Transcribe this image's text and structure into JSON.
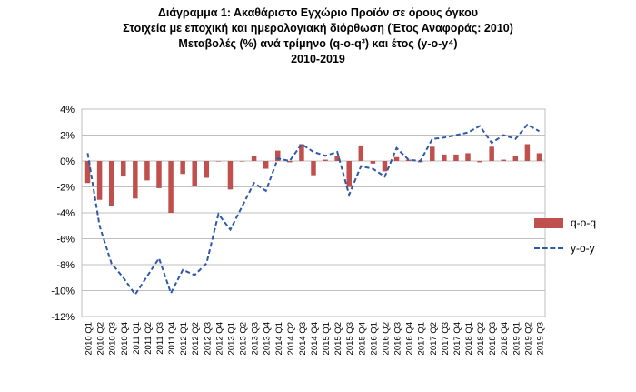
{
  "header": {
    "title": "Διάγραμμα 1: Ακαθάριστο Εγχώριο Προϊόν σε όρους όγκου",
    "subtitle1": "Στοιχεία με εποχική και ημερολογιακή διόρθωση (Έτος Αναφοράς: 2010)",
    "subtitle2": "Μεταβολές (%) ανά τρίμηνο (q-o-q³) και έτος (y-o-y⁴)",
    "subtitle3": "2010-2019"
  },
  "chart_data": {
    "type": "bar",
    "categories": [
      "2010 Q1",
      "2010 Q2",
      "2010 Q3",
      "2010 Q4",
      "2011 Q1",
      "2011 Q2",
      "2011 Q3",
      "2011 Q4",
      "2012 Q1",
      "2012 Q2",
      "2012 Q3",
      "2012 Q4",
      "2013 Q1",
      "2013 Q2",
      "2013 Q3",
      "2013 Q4",
      "2014 Q1",
      "2014 Q2",
      "2014 Q3",
      "2014 Q4",
      "2015 Q1",
      "2015 Q2",
      "2015 Q3",
      "2015 Q4",
      "2016 Q1",
      "2016 Q2",
      "2016 Q3",
      "2016 Q4",
      "2017 Q1",
      "2017 Q2",
      "2017 Q3",
      "2017 Q4",
      "2018 Q1",
      "2018 Q2",
      "2018 Q3",
      "2018 Q4",
      "2019 Q1",
      "2019 Q2",
      "2019 Q3"
    ],
    "series": [
      {
        "name": "q-o-q",
        "kind": "bar",
        "color": "#c0504d",
        "values": [
          -1.7,
          -3.0,
          -3.5,
          -1.2,
          -2.9,
          -1.5,
          -2.1,
          -4.0,
          -1.0,
          -1.9,
          -1.3,
          0.0,
          -2.2,
          0.0,
          0.4,
          -0.6,
          0.8,
          -0.1,
          1.3,
          -1.1,
          0.1,
          0.4,
          -2.0,
          1.2,
          -0.2,
          -0.8,
          0.3,
          0.1,
          -0.1,
          1.1,
          0.5,
          0.5,
          0.6,
          -0.1,
          1.1,
          0.1,
          0.4,
          1.3,
          0.6
        ]
      },
      {
        "name": "y-o-y",
        "kind": "line",
        "color": "#2e5aa8",
        "dashed": true,
        "values": [
          0.6,
          -5.0,
          -7.9,
          -9.0,
          -10.3,
          -8.9,
          -7.5,
          -10.2,
          -8.4,
          -8.8,
          -7.9,
          -4.1,
          -5.3,
          -3.5,
          -1.7,
          -2.3,
          0.2,
          0.0,
          1.3,
          0.7,
          0.4,
          0.7,
          -2.6,
          -0.4,
          -0.6,
          -1.2,
          1.0,
          0.1,
          0.0,
          1.7,
          1.8,
          2.0,
          2.2,
          2.7,
          1.4,
          2.0,
          1.7,
          2.8,
          2.3
        ]
      }
    ],
    "ylim": [
      -12,
      4
    ],
    "yticks": [
      "4%",
      "2%",
      "0%",
      "-2%",
      "-4%",
      "-6%",
      "-8%",
      "-10%",
      "-12%"
    ],
    "grid": true,
    "legend": "right"
  }
}
